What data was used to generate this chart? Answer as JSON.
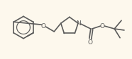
{
  "bg_color": "#fdf8ed",
  "line_color": "#5b5b5b",
  "line_width": 1.2,
  "figsize": [
    1.86,
    0.84
  ],
  "dpi": 100,
  "xlim": [
    0,
    186
  ],
  "ylim": [
    0,
    84
  ]
}
